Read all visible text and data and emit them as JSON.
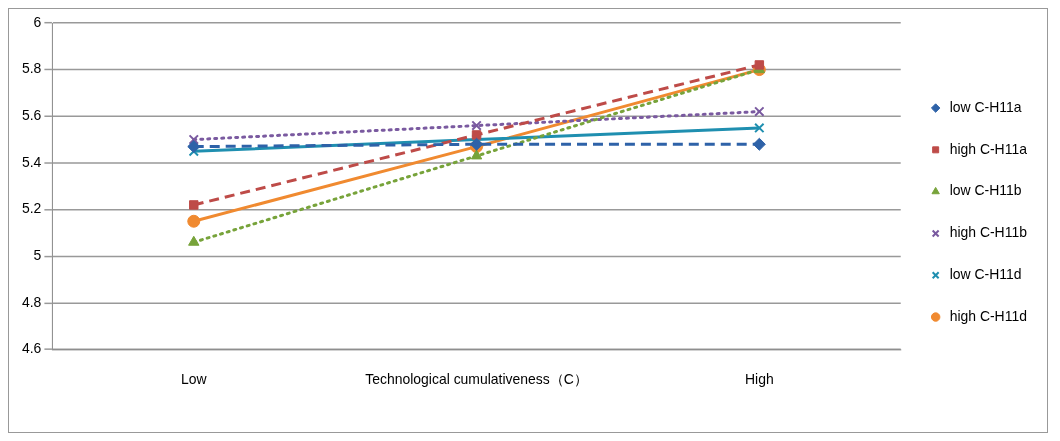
{
  "chart_data": {
    "type": "line",
    "categories": [
      "Low",
      "Technological cumulativeness（C）",
      "High"
    ],
    "series": [
      {
        "name": "low C-H11a",
        "color": "#2e62a8",
        "values": [
          5.47,
          5.48,
          5.48
        ],
        "marker": "diamond",
        "line_style": "dashed"
      },
      {
        "name": "high C-H11a",
        "color": "#be4b48",
        "values": [
          5.22,
          5.52,
          5.82
        ],
        "marker": "square",
        "line_style": "dashed"
      },
      {
        "name": "low C-H11b",
        "color": "#77a33a",
        "values": [
          5.06,
          5.43,
          5.8
        ],
        "marker": "triangle",
        "line_style": "dotted"
      },
      {
        "name": "high C-H11b",
        "color": "#7a5aa0",
        "values": [
          5.5,
          5.56,
          5.62
        ],
        "marker": "cross",
        "line_style": "dotted"
      },
      {
        "name": "low C-H11d",
        "color": "#1f8fb0",
        "values": [
          5.45,
          5.5,
          5.55
        ],
        "marker": "cross",
        "line_style": "solid"
      },
      {
        "name": "high C-H11d",
        "color": "#f08a30",
        "values": [
          5.15,
          5.47,
          5.8
        ],
        "marker": "circle",
        "line_style": "solid"
      }
    ],
    "ylim": [
      4.6,
      6
    ],
    "yticks": [
      4.6,
      4.8,
      5,
      5.2,
      5.4,
      5.6,
      5.8,
      6
    ],
    "grid": "y",
    "legend": "right"
  }
}
